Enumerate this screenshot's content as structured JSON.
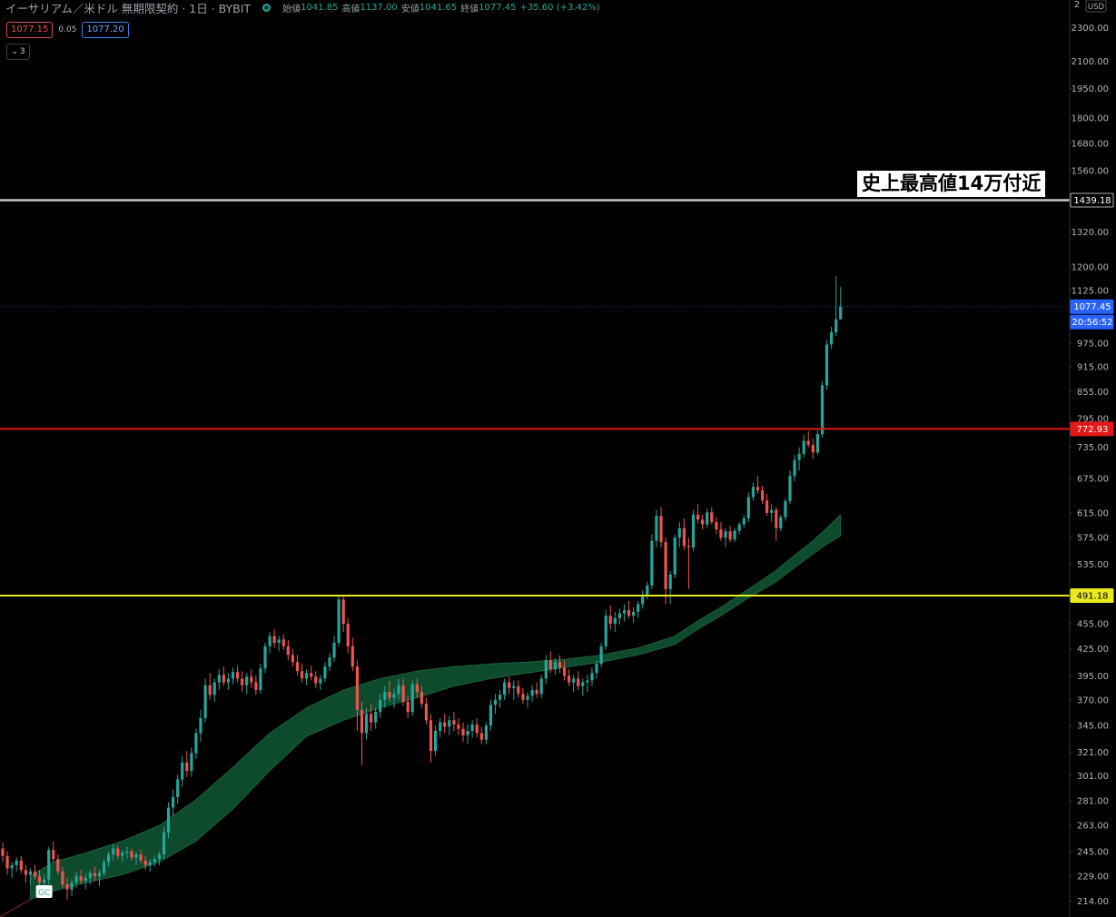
{
  "header": {
    "symbol": "イーサリアム／米ドル 無期限契約 · 1日 · BYBIT",
    "open_label": "始値",
    "open": "1041.85",
    "high_label": "高値",
    "high": "1137.00",
    "low_label": "安値",
    "low": "1041.65",
    "close_label": "終値",
    "close": "1077.45",
    "change": "+35.60 (+3.42%)"
  },
  "trade": {
    "sell": "1077.15",
    "spread": "0.05",
    "buy": "1077.20",
    "collapsed_count": "3"
  },
  "annotation": "史上最高値14万付近",
  "axis": {
    "currency": "USD",
    "top_partial": "2"
  },
  "colors": {
    "bg": "#000000",
    "up": "#26a69a",
    "down": "#ef5350",
    "cloud": "#0e4a2c",
    "ath_line": "#c8c8c8",
    "resistance_line": "#e31818",
    "support_line": "#e8e81c",
    "price_tag": "#2962ff",
    "text": "#9aa0ab"
  },
  "chart_data": {
    "type": "candlestick",
    "scale": "log",
    "ylim": [
      205,
      2480
    ],
    "y_ticks": [
      "2300.00",
      "2100.00",
      "1950.00",
      "1800.00",
      "1680.00",
      "1560.00",
      "1320.00",
      "1200.00",
      "1125.00",
      "975.00",
      "915.00",
      "855.00",
      "795.00",
      "735.00",
      "675.00",
      "615.00",
      "575.00",
      "535.00",
      "455.00",
      "425.00",
      "395.00",
      "370.00",
      "345.00",
      "321.00",
      "301.00",
      "281.00",
      "263.00",
      "245.00",
      "229.00",
      "214.00"
    ],
    "horizontal_lines": [
      {
        "value": 1439.18,
        "label": "1439.18",
        "style": "ath"
      },
      {
        "value": 772.93,
        "label": "772.93",
        "style": "resistance"
      },
      {
        "value": 491.18,
        "label": "491.18",
        "style": "support"
      }
    ],
    "last_price": {
      "value": 1077.45,
      "label": "1077.45",
      "countdown": "20:56:52"
    },
    "marker": {
      "text": "GC",
      "index": 9
    },
    "ohlc": [
      [
        247,
        251,
        238,
        242
      ],
      [
        242,
        245,
        230,
        234
      ],
      [
        234,
        238,
        228,
        236
      ],
      [
        236,
        241,
        232,
        239
      ],
      [
        239,
        242,
        231,
        233
      ],
      [
        233,
        236,
        225,
        230
      ],
      [
        230,
        234,
        224,
        232
      ],
      [
        232,
        236,
        227,
        229
      ],
      [
        229,
        233,
        222,
        225
      ],
      [
        225,
        230,
        216,
        227
      ],
      [
        227,
        248,
        224,
        246
      ],
      [
        246,
        252,
        238,
        240
      ],
      [
        240,
        243,
        230,
        232
      ],
      [
        232,
        235,
        222,
        224
      ],
      [
        224,
        228,
        215,
        221
      ],
      [
        221,
        227,
        217,
        225
      ],
      [
        225,
        232,
        222,
        229
      ],
      [
        229,
        233,
        224,
        226
      ],
      [
        226,
        231,
        221,
        228
      ],
      [
        228,
        233,
        224,
        231
      ],
      [
        231,
        235,
        226,
        229
      ],
      [
        229,
        233,
        223,
        231
      ],
      [
        231,
        240,
        229,
        238
      ],
      [
        238,
        245,
        235,
        243
      ],
      [
        243,
        250,
        239,
        247
      ],
      [
        247,
        249,
        240,
        242
      ],
      [
        242,
        246,
        238,
        244
      ],
      [
        244,
        248,
        240,
        245
      ],
      [
        245,
        247,
        239,
        241
      ],
      [
        241,
        245,
        236,
        243
      ],
      [
        243,
        246,
        237,
        239
      ],
      [
        239,
        242,
        233,
        236
      ],
      [
        236,
        240,
        232,
        238
      ],
      [
        238,
        242,
        235,
        240
      ],
      [
        240,
        245,
        236,
        243
      ],
      [
        243,
        262,
        240,
        258
      ],
      [
        258,
        280,
        254,
        276
      ],
      [
        276,
        290,
        270,
        284
      ],
      [
        284,
        302,
        279,
        298
      ],
      [
        298,
        318,
        292,
        312
      ],
      [
        312,
        322,
        300,
        305
      ],
      [
        305,
        325,
        300,
        320
      ],
      [
        320,
        342,
        315,
        338
      ],
      [
        338,
        360,
        330,
        352
      ],
      [
        352,
        392,
        348,
        385
      ],
      [
        385,
        398,
        370,
        375
      ],
      [
        375,
        392,
        368,
        388
      ],
      [
        388,
        402,
        380,
        396
      ],
      [
        396,
        405,
        384,
        388
      ],
      [
        388,
        398,
        380,
        392
      ],
      [
        392,
        404,
        386,
        399
      ],
      [
        399,
        406,
        388,
        392
      ],
      [
        392,
        400,
        378,
        385
      ],
      [
        385,
        398,
        376,
        394
      ],
      [
        394,
        402,
        382,
        388
      ],
      [
        388,
        396,
        375,
        380
      ],
      [
        380,
        408,
        376,
        403
      ],
      [
        403,
        432,
        398,
        428
      ],
      [
        428,
        445,
        420,
        440
      ],
      [
        440,
        448,
        426,
        432
      ],
      [
        432,
        440,
        422,
        436
      ],
      [
        436,
        442,
        424,
        428
      ],
      [
        428,
        435,
        412,
        418
      ],
      [
        418,
        425,
        405,
        410
      ],
      [
        410,
        418,
        395,
        400
      ],
      [
        400,
        408,
        388,
        392
      ],
      [
        392,
        402,
        385,
        398
      ],
      [
        398,
        406,
        390,
        394
      ],
      [
        394,
        400,
        382,
        387
      ],
      [
        387,
        396,
        380,
        392
      ],
      [
        392,
        410,
        388,
        405
      ],
      [
        405,
        420,
        400,
        415
      ],
      [
        415,
        440,
        410,
        432
      ],
      [
        432,
        492,
        428,
        486
      ],
      [
        486,
        490,
        445,
        455
      ],
      [
        455,
        462,
        420,
        428
      ],
      [
        428,
        438,
        400,
        405
      ],
      [
        405,
        412,
        340,
        360
      ],
      [
        360,
        368,
        310,
        338
      ],
      [
        338,
        362,
        332,
        356
      ],
      [
        356,
        366,
        340,
        348
      ],
      [
        348,
        362,
        342,
        358
      ],
      [
        358,
        376,
        352,
        370
      ],
      [
        370,
        384,
        362,
        378
      ],
      [
        378,
        390,
        368,
        372
      ],
      [
        372,
        382,
        362,
        376
      ],
      [
        376,
        392,
        370,
        385
      ],
      [
        385,
        392,
        364,
        368
      ],
      [
        368,
        374,
        352,
        358
      ],
      [
        358,
        390,
        354,
        386
      ],
      [
        386,
        392,
        372,
        378
      ],
      [
        378,
        384,
        362,
        366
      ],
      [
        366,
        372,
        346,
        350
      ],
      [
        350,
        356,
        312,
        322
      ],
      [
        322,
        345,
        318,
        340
      ],
      [
        340,
        352,
        334,
        348
      ],
      [
        348,
        356,
        338,
        344
      ],
      [
        344,
        354,
        336,
        350
      ],
      [
        350,
        358,
        340,
        346
      ],
      [
        346,
        352,
        336,
        342
      ],
      [
        342,
        348,
        330,
        336
      ],
      [
        336,
        346,
        328,
        340
      ],
      [
        340,
        350,
        334,
        346
      ],
      [
        346,
        352,
        334,
        338
      ],
      [
        338,
        344,
        328,
        332
      ],
      [
        332,
        348,
        328,
        345
      ],
      [
        345,
        370,
        340,
        365
      ],
      [
        365,
        376,
        356,
        370
      ],
      [
        370,
        380,
        362,
        375
      ],
      [
        375,
        392,
        370,
        388
      ],
      [
        388,
        394,
        376,
        382
      ],
      [
        382,
        390,
        370,
        384
      ],
      [
        384,
        390,
        372,
        376
      ],
      [
        376,
        382,
        366,
        370
      ],
      [
        370,
        378,
        362,
        374
      ],
      [
        374,
        385,
        368,
        380
      ],
      [
        380,
        388,
        372,
        376
      ],
      [
        376,
        396,
        372,
        392
      ],
      [
        392,
        418,
        386,
        412
      ],
      [
        412,
        422,
        398,
        402
      ],
      [
        402,
        414,
        396,
        410
      ],
      [
        410,
        418,
        398,
        404
      ],
      [
        404,
        412,
        390,
        395
      ],
      [
        395,
        402,
        384,
        388
      ],
      [
        388,
        396,
        378,
        392
      ],
      [
        392,
        400,
        380,
        384
      ],
      [
        384,
        392,
        374,
        388
      ],
      [
        388,
        396,
        378,
        390
      ],
      [
        390,
        404,
        384,
        398
      ],
      [
        398,
        412,
        392,
        408
      ],
      [
        408,
        432,
        404,
        428
      ],
      [
        428,
        472,
        424,
        465
      ],
      [
        465,
        478,
        448,
        455
      ],
      [
        455,
        470,
        445,
        462
      ],
      [
        462,
        474,
        454,
        468
      ],
      [
        468,
        480,
        458,
        472
      ],
      [
        472,
        484,
        462,
        465
      ],
      [
        465,
        476,
        456,
        470
      ],
      [
        470,
        484,
        462,
        480
      ],
      [
        480,
        498,
        474,
        492
      ],
      [
        492,
        510,
        486,
        505
      ],
      [
        505,
        580,
        500,
        570
      ],
      [
        570,
        620,
        560,
        610
      ],
      [
        610,
        625,
        560,
        568
      ],
      [
        568,
        575,
        480,
        500
      ],
      [
        500,
        525,
        480,
        520
      ],
      [
        520,
        580,
        515,
        575
      ],
      [
        575,
        600,
        560,
        590
      ],
      [
        590,
        606,
        556,
        562
      ],
      [
        562,
        575,
        500,
        560
      ],
      [
        560,
        620,
        555,
        612
      ],
      [
        612,
        630,
        598,
        604
      ],
      [
        604,
        612,
        588,
        596
      ],
      [
        596,
        622,
        590,
        616
      ],
      [
        616,
        624,
        596,
        600
      ],
      [
        600,
        608,
        580,
        588
      ],
      [
        588,
        600,
        570,
        575
      ],
      [
        575,
        590,
        560,
        585
      ],
      [
        585,
        594,
        568,
        572
      ],
      [
        572,
        590,
        568,
        586
      ],
      [
        586,
        600,
        580,
        596
      ],
      [
        596,
        612,
        590,
        606
      ],
      [
        606,
        650,
        600,
        642
      ],
      [
        642,
        668,
        636,
        660
      ],
      [
        660,
        680,
        648,
        654
      ],
      [
        654,
        662,
        630,
        636
      ],
      [
        636,
        648,
        610,
        615
      ],
      [
        615,
        630,
        600,
        620
      ],
      [
        620,
        625,
        570,
        590
      ],
      [
        590,
        612,
        585,
        608
      ],
      [
        608,
        640,
        602,
        635
      ],
      [
        635,
        690,
        630,
        680
      ],
      [
        680,
        720,
        670,
        710
      ],
      [
        710,
        735,
        690,
        722
      ],
      [
        722,
        760,
        715,
        748
      ],
      [
        748,
        768,
        735,
        740
      ],
      [
        740,
        752,
        712,
        725
      ],
      [
        725,
        770,
        720,
        762
      ],
      [
        762,
        880,
        755,
        870
      ],
      [
        870,
        985,
        860,
        972
      ],
      [
        972,
        1020,
        960,
        1005
      ],
      [
        1005,
        1170,
        995,
        1041
      ],
      [
        1041,
        1137,
        1041,
        1077
      ]
    ],
    "ma": {
      "upper": [
        [
          6,
          229
        ],
        [
          11,
          238
        ],
        [
          18,
          244
        ],
        [
          26,
          252
        ],
        [
          34,
          263
        ],
        [
          42,
          282
        ],
        [
          50,
          308
        ],
        [
          58,
          338
        ],
        [
          66,
          362
        ],
        [
          74,
          380
        ],
        [
          82,
          392
        ],
        [
          90,
          400
        ],
        [
          98,
          405
        ],
        [
          106,
          408
        ],
        [
          114,
          410
        ],
        [
          122,
          413
        ],
        [
          130,
          418
        ],
        [
          138,
          426
        ],
        [
          146,
          440
        ],
        [
          150,
          455
        ],
        [
          156,
          476
        ],
        [
          162,
          500
        ],
        [
          168,
          526
        ],
        [
          172,
          548
        ],
        [
          176,
          570
        ],
        [
          179,
          590
        ],
        [
          182,
          612
        ]
      ],
      "lower": [
        [
          6,
          215
        ],
        [
          11,
          220
        ],
        [
          18,
          225
        ],
        [
          26,
          230
        ],
        [
          34,
          238
        ],
        [
          42,
          252
        ],
        [
          50,
          275
        ],
        [
          58,
          305
        ],
        [
          66,
          335
        ],
        [
          74,
          350
        ],
        [
          82,
          362
        ],
        [
          90,
          372
        ],
        [
          98,
          384
        ],
        [
          106,
          392
        ],
        [
          114,
          398
        ],
        [
          122,
          404
        ],
        [
          130,
          410
        ],
        [
          138,
          418
        ],
        [
          146,
          430
        ],
        [
          150,
          445
        ],
        [
          156,
          465
        ],
        [
          162,
          488
        ],
        [
          168,
          510
        ],
        [
          172,
          530
        ],
        [
          176,
          550
        ],
        [
          179,
          565
        ],
        [
          182,
          578
        ]
      ]
    }
  }
}
